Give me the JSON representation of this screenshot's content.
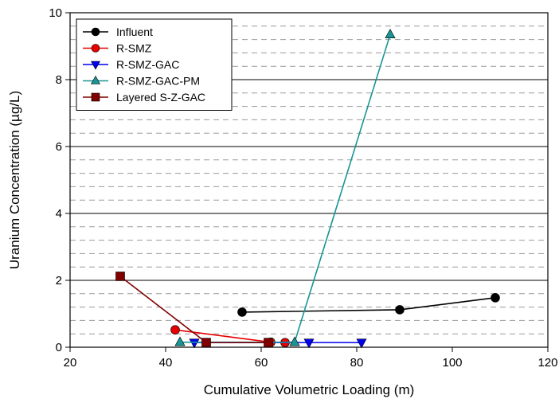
{
  "chart_data": {
    "type": "line",
    "title": "",
    "xlabel": "Cumulative Volumetric Loading (m)",
    "ylabel": "Uranium Concentration (µg/L)",
    "xlim": [
      20,
      120
    ],
    "ylim": [
      0,
      10
    ],
    "xticks": [
      "20",
      "40",
      "60",
      "80",
      "100",
      "120"
    ],
    "yticks": [
      "0",
      "2",
      "4",
      "6",
      "8",
      "10"
    ],
    "grid": {
      "major_y": "solid",
      "minor_y": "dashed",
      "minor_y_step": 0.4,
      "x": "none"
    },
    "legend_position": "top-left",
    "series": [
      {
        "name": "Influent",
        "color": "#000000",
        "marker": "circle",
        "x": [
          56,
          89,
          109
        ],
        "y": [
          1.05,
          1.12,
          1.48
        ]
      },
      {
        "name": "R-SMZ",
        "color": "#e60000",
        "marker": "circle",
        "x": [
          42,
          62,
          65
        ],
        "y": [
          0.52,
          0.15,
          0.14
        ]
      },
      {
        "name": "R-SMZ-GAC",
        "color": "#0000ee",
        "marker": "triangle-down",
        "x": [
          46,
          70,
          81
        ],
        "y": [
          0.14,
          0.14,
          0.14
        ]
      },
      {
        "name": "R-SMZ-GAC-PM",
        "color": "#1a9494",
        "marker": "triangle-up",
        "x": [
          43,
          67,
          87
        ],
        "y": [
          0.15,
          0.15,
          9.35
        ]
      },
      {
        "name": "Layered S-Z-GAC",
        "color": "#800000",
        "marker": "square",
        "x": [
          30.5,
          48.5,
          61.5
        ],
        "y": [
          2.12,
          0.14,
          0.14
        ]
      }
    ]
  }
}
